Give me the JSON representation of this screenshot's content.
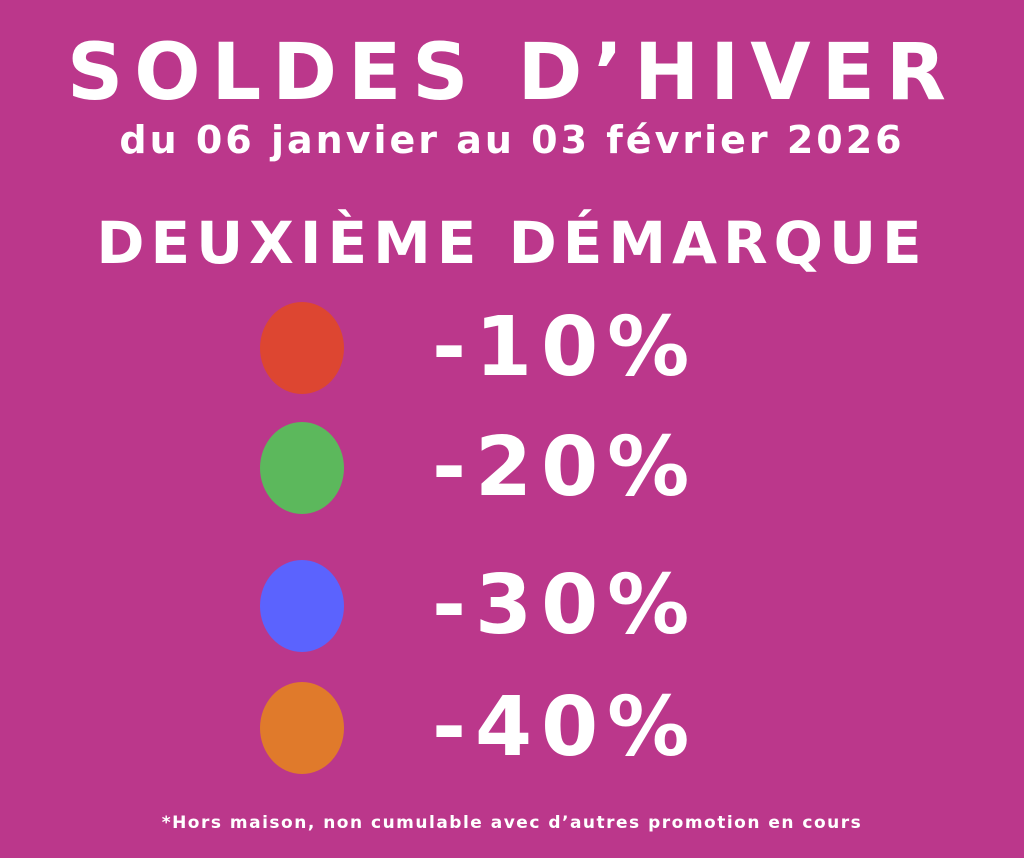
{
  "title": "SOLDES D’HIVER",
  "dates": "du 06 janvier au 03 février 2026",
  "subtitle": "DEUXIÈME DÉMARQUE",
  "discounts": [
    {
      "label": "-10%",
      "color": "#dd4631"
    },
    {
      "label": "-20%",
      "color": "#5cb85c"
    },
    {
      "label": "-30%",
      "color": "#5b63fe"
    },
    {
      "label": "-40%",
      "color": "#e07a2b"
    }
  ],
  "footnote": "*Hors maison, non cumulable avec d’autres promotion en cours",
  "colors": {
    "background": "#bb378b",
    "text": "#ffffff"
  }
}
